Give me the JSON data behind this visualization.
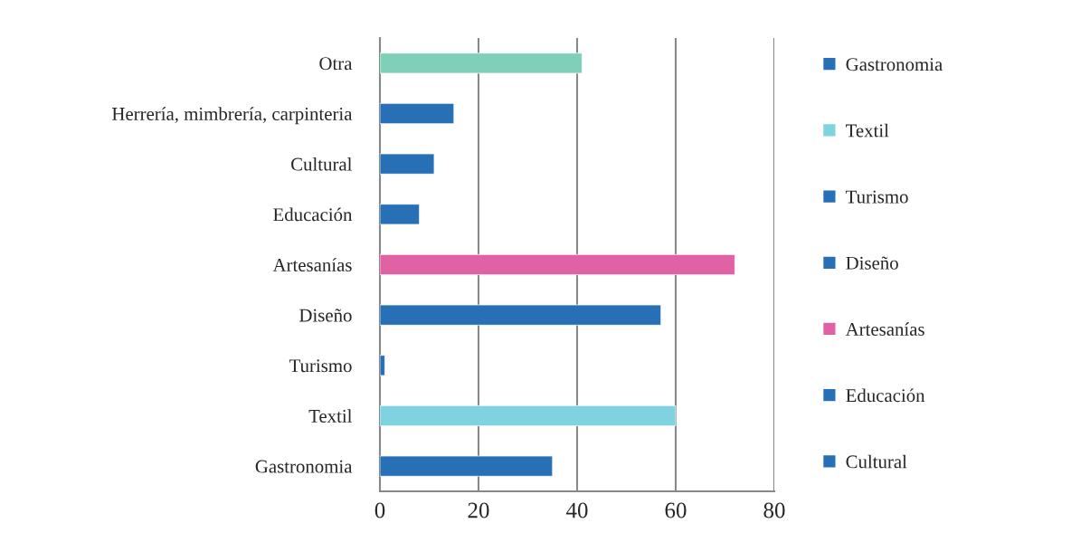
{
  "chart_data": {
    "type": "bar",
    "orientation": "horizontal",
    "categories": [
      "Otra",
      "Herrería, mimbrería, carpinteria",
      "Cultural",
      "Educación",
      "Artesanías",
      "Diseño",
      "Turismo",
      "Textil",
      "Gastronomia"
    ],
    "series": [
      {
        "name": "Gastronomia",
        "color": "#2870b6",
        "values": [
          null,
          null,
          null,
          null,
          null,
          null,
          null,
          null,
          35
        ]
      },
      {
        "name": "Textil",
        "color": "#7fd2df",
        "values": [
          null,
          null,
          null,
          null,
          null,
          null,
          null,
          60,
          null
        ]
      },
      {
        "name": "Turismo",
        "color": "#2870b6",
        "values": [
          null,
          null,
          null,
          null,
          null,
          null,
          1,
          null,
          null
        ]
      },
      {
        "name": "Diseño",
        "color": "#2870b6",
        "values": [
          null,
          null,
          null,
          null,
          null,
          57,
          null,
          null,
          null
        ]
      },
      {
        "name": "Artesanías",
        "color": "#e062a5",
        "values": [
          null,
          null,
          null,
          null,
          72,
          null,
          null,
          null,
          null
        ]
      },
      {
        "name": "Educación",
        "color": "#2870b6",
        "values": [
          null,
          null,
          null,
          8,
          null,
          null,
          null,
          null,
          null
        ]
      },
      {
        "name": "Cultural",
        "color": "#2870b6",
        "values": [
          null,
          null,
          11,
          null,
          null,
          null,
          null,
          null,
          null
        ]
      },
      {
        "color": "#2870b6",
        "values": [
          null,
          15,
          null,
          null,
          null,
          null,
          null,
          null,
          null
        ]
      },
      {
        "color": "#80cfb9",
        "values": [
          41,
          null,
          null,
          null,
          null,
          null,
          null,
          null,
          null
        ]
      }
    ],
    "xlim": [
      0,
      80
    ],
    "xticks": [
      0,
      20,
      40,
      60,
      80
    ],
    "grid": "x",
    "legend": "right"
  }
}
